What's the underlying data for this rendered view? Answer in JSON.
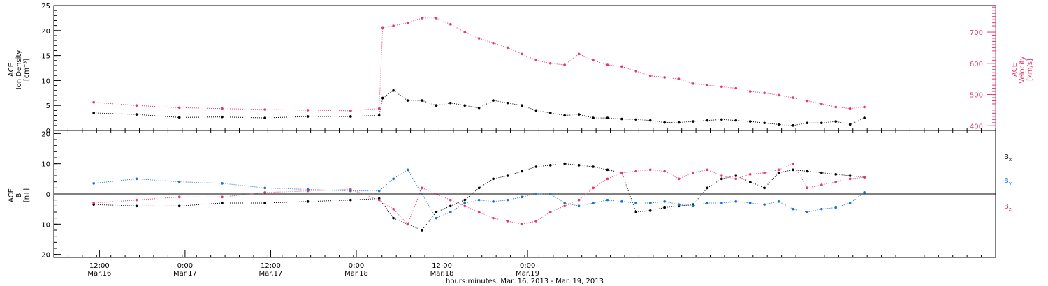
{
  "chart_data": [
    {
      "type": "scatter",
      "ylabel_lines": [
        "ACE",
        "Ion Density",
        "[cm⁻³]"
      ],
      "ylim": [
        0,
        25
      ],
      "yticks": [
        "0",
        "5",
        "10",
        "15",
        "20",
        "25"
      ],
      "right_ylabel_lines": [
        "ACE",
        "Velocity",
        "[km/s]"
      ],
      "right_ylim": [
        385,
        785
      ],
      "right_yticks": [
        "400",
        "500",
        "600",
        "700"
      ],
      "series": [
        {
          "color": "#000000",
          "x": [
            0,
            6,
            12,
            18,
            24,
            30,
            36,
            40,
            40.5,
            42,
            44,
            46,
            48,
            50,
            52,
            54,
            56,
            58,
            60,
            62,
            64,
            66,
            68,
            70,
            72,
            74,
            76,
            78,
            80,
            82,
            84,
            86,
            88,
            90,
            92,
            94,
            96,
            98,
            100,
            102,
            104,
            106,
            108
          ],
          "y": [
            3.5,
            3.2,
            2.6,
            2.7,
            2.5,
            2.8,
            2.8,
            3.0,
            6.5,
            8.0,
            6.0,
            6.0,
            5.0,
            5.5,
            5.0,
            4.5,
            6.0,
            5.5,
            5.0,
            4.0,
            3.5,
            3.0,
            3.2,
            2.5,
            2.5,
            2.3,
            2.2,
            2.0,
            1.6,
            1.6,
            1.8,
            2.0,
            2.2,
            2.0,
            1.8,
            1.5,
            1.2,
            1.0,
            1.5,
            1.5,
            1.8,
            1.2,
            2.5
          ]
        },
        {
          "color": "#e8396a",
          "x": [
            0,
            6,
            12,
            18,
            24,
            30,
            36,
            40,
            40.5,
            42,
            44,
            46,
            48,
            50,
            52,
            54,
            56,
            58,
            60,
            62,
            64,
            66,
            68,
            70,
            72,
            74,
            76,
            78,
            80,
            82,
            84,
            86,
            88,
            90,
            92,
            94,
            96,
            98,
            100,
            102,
            104,
            106,
            108
          ],
          "y": [
            475,
            465,
            458,
            455,
            452,
            450,
            448,
            455,
            715,
            720,
            730,
            745,
            745,
            725,
            700,
            680,
            665,
            650,
            630,
            610,
            600,
            595,
            630,
            610,
            595,
            590,
            575,
            560,
            555,
            550,
            535,
            530,
            525,
            520,
            510,
            505,
            498,
            490,
            480,
            470,
            460,
            455,
            460
          ]
        }
      ]
    },
    {
      "type": "scatter",
      "ylabel_lines": [
        "ACE",
        "B",
        "[nT]"
      ],
      "ylim": [
        -21,
        21
      ],
      "yticks": [
        "-20",
        "-10",
        "0",
        "10",
        "20"
      ],
      "xticks": [
        {
          "time": "12:00",
          "date": "Mar.16"
        },
        {
          "time": "0:00",
          "date": "Mar.17"
        },
        {
          "time": "12:00",
          "date": "Mar.17"
        },
        {
          "time": "0:00",
          "date": "Mar.18"
        },
        {
          "time": "12:00",
          "date": "Mar.18"
        },
        {
          "time": "0:00",
          "date": "Mar.19"
        }
      ],
      "xlabel": "hours:minutes, Mar. 16, 2013 - Mar. 19, 2013",
      "series": [
        {
          "name": "B",
          "sub": "x",
          "color": "#000000",
          "x": [
            0,
            6,
            12,
            18,
            24,
            30,
            36,
            40,
            42,
            44,
            46,
            48,
            50,
            52,
            54,
            56,
            58,
            60,
            62,
            64,
            66,
            68,
            70,
            72,
            74,
            76,
            78,
            80,
            82,
            84,
            86,
            88,
            90,
            92,
            94,
            96,
            98,
            100,
            102,
            104,
            106,
            108
          ],
          "y": [
            -3.5,
            -4.0,
            -4.0,
            -3.0,
            -3.0,
            -2.5,
            -2.0,
            -1.5,
            -8.0,
            -10.0,
            -12.0,
            -6.0,
            -4.0,
            -2.0,
            2.0,
            5.0,
            6.0,
            7.5,
            9.0,
            9.5,
            10.0,
            9.5,
            9.0,
            8.0,
            7.0,
            -6.0,
            -5.5,
            -4.5,
            -4.0,
            -3.5,
            2.0,
            5.0,
            6.0,
            4.0,
            2.0,
            7.0,
            8.0,
            7.5,
            7.0,
            6.5,
            6.0,
            5.5
          ]
        },
        {
          "name": "B",
          "sub": "y",
          "color": "#1a73d6",
          "x": [
            0,
            6,
            12,
            18,
            24,
            30,
            36,
            40,
            42,
            44,
            46,
            48,
            50,
            52,
            54,
            56,
            58,
            60,
            62,
            64,
            66,
            68,
            70,
            72,
            74,
            76,
            78,
            80,
            82,
            84,
            86,
            88,
            90,
            92,
            94,
            96,
            98,
            100,
            102,
            104,
            106,
            108
          ],
          "y": [
            3.5,
            5.0,
            4.0,
            3.5,
            2.0,
            1.5,
            1.0,
            1.0,
            5.0,
            8.0,
            0.0,
            -8.0,
            -6.0,
            -3.0,
            -2.0,
            -2.5,
            -2.0,
            -1.0,
            0.0,
            0.0,
            -3.0,
            -4.0,
            -3.0,
            -2.0,
            -2.5,
            -3.0,
            -3.0,
            -2.5,
            -3.5,
            -4.0,
            -3.0,
            -3.0,
            -2.5,
            -3.0,
            -3.5,
            -2.5,
            -5.0,
            -6.0,
            -5.0,
            -4.5,
            -3.0,
            0.5
          ]
        },
        {
          "name": "B",
          "sub": "z",
          "color": "#e8396a",
          "x": [
            0,
            6,
            12,
            18,
            24,
            30,
            36,
            40,
            42,
            44,
            46,
            48,
            50,
            52,
            54,
            56,
            58,
            60,
            62,
            64,
            66,
            68,
            70,
            72,
            74,
            76,
            78,
            80,
            82,
            84,
            86,
            88,
            90,
            92,
            94,
            96,
            98,
            100,
            102,
            104,
            106,
            108
          ],
          "y": [
            -3.0,
            -2.0,
            -1.0,
            -1.0,
            0.5,
            1.0,
            1.5,
            -2.0,
            -5.0,
            -10.0,
            2.0,
            0.0,
            -2.0,
            -4.0,
            -6.0,
            -8.0,
            -9.0,
            -10.0,
            -9.0,
            -6.0,
            -4.0,
            -2.0,
            2.0,
            5.0,
            7.0,
            7.5,
            8.0,
            7.5,
            5.0,
            7.0,
            8.0,
            6.0,
            5.0,
            6.5,
            7.0,
            8.0,
            10.0,
            2.0,
            3.0,
            4.0,
            5.0,
            5.5
          ]
        }
      ]
    }
  ]
}
